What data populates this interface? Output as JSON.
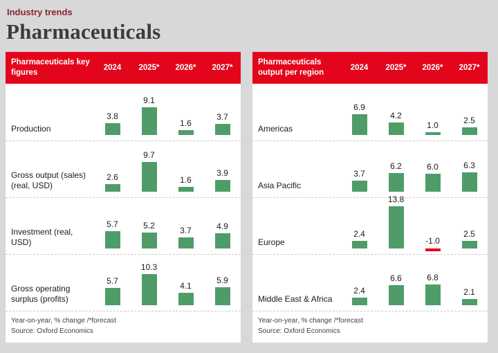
{
  "page": {
    "kicker": "Industry trends",
    "title": "Pharmaceuticals"
  },
  "colors": {
    "header_red": "#e3051b",
    "bar_green": "#4f9c68",
    "bar_negative_red": "#e3051b",
    "kicker_maroon": "#8b2332"
  },
  "chart_data": [
    {
      "type": "bar",
      "title": "Pharmaceuticals key figures",
      "columns": [
        "2024",
        "2025*",
        "2026*",
        "2027*"
      ],
      "rows": [
        {
          "label": "Production",
          "values": [
            3.8,
            9.1,
            1.6,
            3.7
          ]
        },
        {
          "label": "Gross output (sales) (real, USD)",
          "values": [
            2.6,
            9.7,
            1.6,
            3.9
          ]
        },
        {
          "label": "Investment (real, USD)",
          "values": [
            5.7,
            5.2,
            3.7,
            4.9
          ]
        },
        {
          "label": "Gross operating surplus (profits)",
          "values": [
            5.7,
            10.3,
            4.1,
            5.9
          ]
        }
      ],
      "note": "Year-on-year, % change /*forecast",
      "source": "Source: Oxford Economics"
    },
    {
      "type": "bar",
      "title": "Pharmaceuticals output per region",
      "columns": [
        "2024",
        "2025*",
        "2026*",
        "2027*"
      ],
      "rows": [
        {
          "label": "Americas",
          "values": [
            6.9,
            4.2,
            1.0,
            2.5
          ]
        },
        {
          "label": "Asia Pacific",
          "values": [
            3.7,
            6.2,
            6.0,
            6.3
          ]
        },
        {
          "label": "Europe",
          "values": [
            2.4,
            13.8,
            -1.0,
            2.5
          ]
        },
        {
          "label": "Middle East & Africa",
          "values": [
            2.4,
            6.6,
            6.8,
            2.1
          ]
        }
      ],
      "note": "Year-on-year, % change /*forecast",
      "source": "Source: Oxford Economics"
    }
  ]
}
